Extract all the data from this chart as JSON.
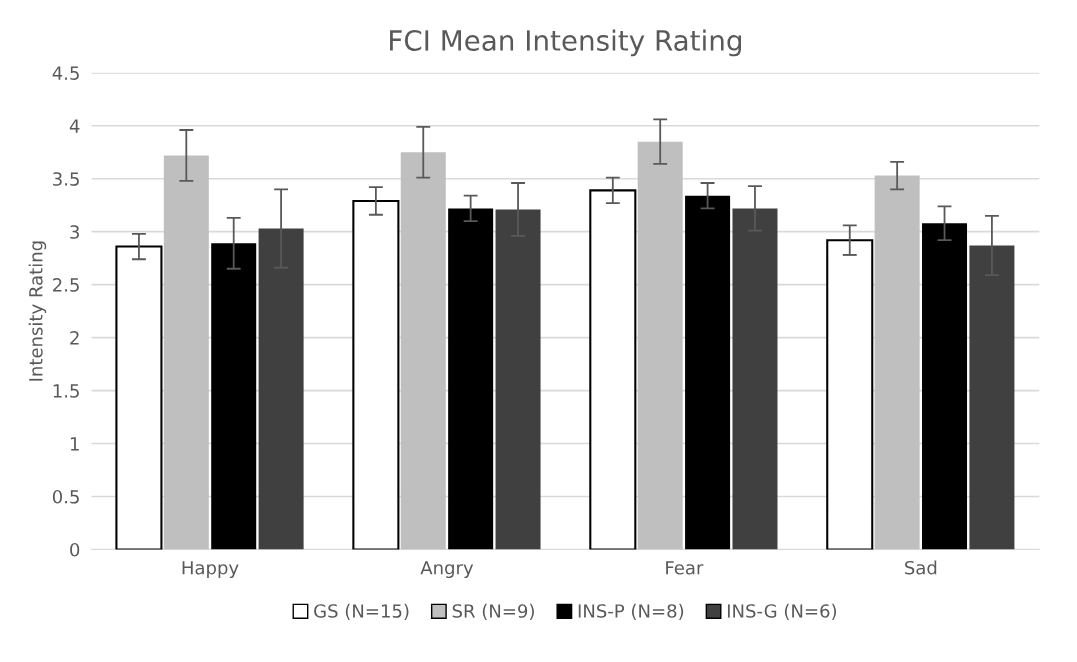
{
  "chart_data": {
    "type": "bar",
    "title": "FCI Mean Intensity Rating",
    "ylabel": "Intensity Rating",
    "categories": [
      "Happy",
      "Angry",
      "Fear",
      "Sad"
    ],
    "series": [
      {
        "name": "GS (N=15)",
        "color": "#ffffff",
        "values": [
          2.86,
          3.29,
          3.39,
          2.92
        ],
        "errors": [
          0.12,
          0.13,
          0.12,
          0.14
        ]
      },
      {
        "name": "SR (N=9)",
        "color": "#bfbfbf",
        "values": [
          3.72,
          3.75,
          3.85,
          3.53
        ],
        "errors": [
          0.24,
          0.24,
          0.21,
          0.13
        ]
      },
      {
        "name": "INS-P (N=8)",
        "color": "#000000",
        "values": [
          2.89,
          3.22,
          3.34,
          3.08
        ],
        "errors": [
          0.24,
          0.12,
          0.12,
          0.16
        ]
      },
      {
        "name": "INS-G (N=6)",
        "color": "#404040",
        "values": [
          3.03,
          3.21,
          3.22,
          2.87
        ],
        "errors": [
          0.37,
          0.25,
          0.21,
          0.28
        ]
      }
    ],
    "ylim": [
      0,
      4.5
    ],
    "yticks": [
      0,
      0.5,
      1,
      1.5,
      2,
      2.5,
      3,
      3.5,
      4,
      4.5
    ],
    "grid": "y",
    "legend": "bottom"
  }
}
